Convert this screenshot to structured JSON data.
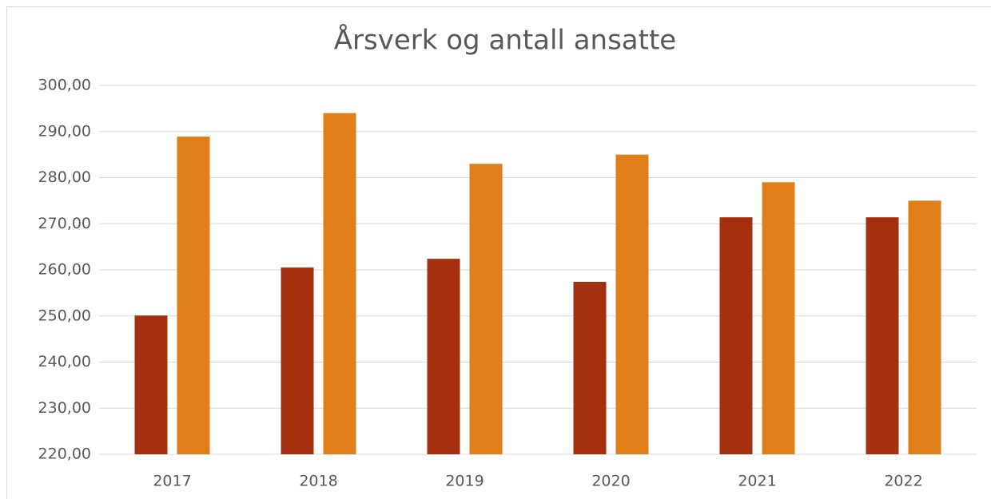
{
  "chart_data": {
    "type": "bar",
    "title": "Årsverk og antall ansatte",
    "categories": [
      "2017",
      "2018",
      "2019",
      "2020",
      "2021",
      "2022"
    ],
    "series": [
      {
        "color": "#a5300f",
        "values": [
          250.1,
          260.5,
          262.4,
          257.4,
          271.4,
          271.4
        ]
      },
      {
        "color": "#e07e1a",
        "values": [
          288.9,
          294,
          283,
          285,
          279,
          275
        ]
      }
    ],
    "ylim": [
      220,
      300
    ],
    "yticks": [
      {
        "value": 220,
        "label": "220,00"
      },
      {
        "value": 230,
        "label": "230,00"
      },
      {
        "value": 240,
        "label": "240,00"
      },
      {
        "value": 250,
        "label": "250,00"
      },
      {
        "value": 260,
        "label": "260,00"
      },
      {
        "value": 270,
        "label": "270,00"
      },
      {
        "value": 280,
        "label": "280,00"
      },
      {
        "value": 290,
        "label": "290,00"
      },
      {
        "value": 300,
        "label": "300,00"
      }
    ],
    "grid": true
  }
}
